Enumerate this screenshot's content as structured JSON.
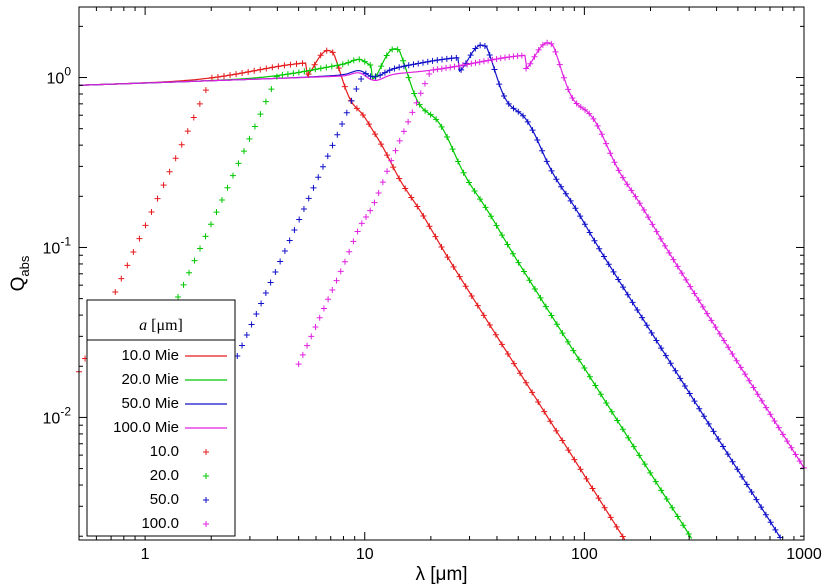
{
  "chart_data": {
    "type": "line",
    "xlabel": "λ [μm]",
    "ylabel_main": "Q",
    "ylabel_sub": "abs",
    "xscale": "log",
    "yscale": "log",
    "xlim": [
      0.5,
      1000
    ],
    "ylim": [
      0.0019,
      2.6
    ],
    "xticks": [
      {
        "value": 1,
        "label": "1"
      },
      {
        "value": 10,
        "label": "10"
      },
      {
        "value": 100,
        "label": "100"
      },
      {
        "value": 1000,
        "label": "1000"
      }
    ],
    "yticks": [
      {
        "value": 0.01,
        "base": "10",
        "exp": "-2"
      },
      {
        "value": 0.1,
        "base": "10",
        "exp": "-1"
      },
      {
        "value": 1,
        "base": "10",
        "exp": "0"
      }
    ],
    "legend": {
      "title_symbol": "a",
      "title_unit": " [μm]",
      "position": "bottom-left"
    },
    "series": [
      {
        "name": "10.0 Mie",
        "a": 10,
        "style": "line",
        "color": "#e41a1c"
      },
      {
        "name": "20.0 Mie",
        "a": 20,
        "style": "line",
        "color": "#00c800"
      },
      {
        "name": "50.0 Mie",
        "a": 50,
        "style": "line",
        "color": "#1010c8"
      },
      {
        "name": "100.0 Mie",
        "a": 100,
        "style": "line",
        "color": "#e020e0"
      },
      {
        "name": "10.0",
        "a": 10,
        "style": "points",
        "color": "#e41a1c"
      },
      {
        "name": "20.0",
        "a": 20,
        "style": "points",
        "color": "#00c800"
      },
      {
        "name": "50.0",
        "a": 50,
        "style": "points",
        "color": "#1010c8"
      },
      {
        "name": "100.0",
        "a": 100,
        "style": "points",
        "color": "#e020e0"
      }
    ]
  }
}
